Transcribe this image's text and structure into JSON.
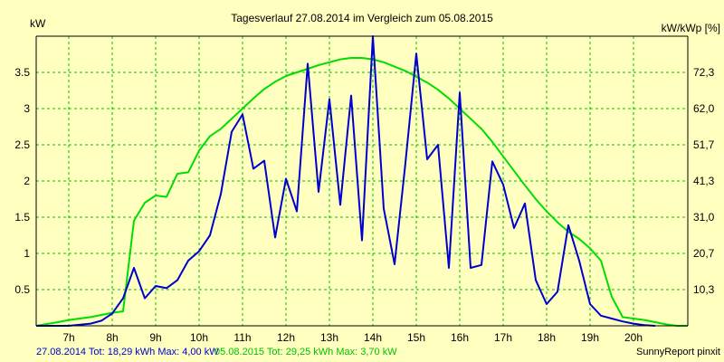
{
  "chart_data": {
    "type": "line",
    "title": "Tagesverlauf 27.08.2014 im Vergleich zum 05.08.2015",
    "ylabel_left": "kW",
    "ylabel_right": "kW/kWp [%]",
    "xlim": [
      6.25,
      21.25
    ],
    "ylim": [
      0,
      4.0
    ],
    "x_ticks": [
      7,
      8,
      9,
      10,
      11,
      12,
      13,
      14,
      15,
      16,
      17,
      18,
      19,
      20
    ],
    "x_tick_labels": [
      "7h",
      "8h",
      "9h",
      "10h",
      "11h",
      "12h",
      "13h",
      "14h",
      "15h",
      "16h",
      "17h",
      "18h",
      "19h",
      "20h"
    ],
    "y_ticks": [
      0.5,
      1,
      1.5,
      2,
      2.5,
      3,
      3.5
    ],
    "y_tick_labels": [
      "0.5",
      "1",
      "1.5",
      "2",
      "2.5",
      "3",
      "3.5"
    ],
    "y2_tick_labels": [
      "10,3",
      "20,7",
      "31,0",
      "41,3",
      "51,7",
      "62,0",
      "72,3"
    ],
    "grid": true,
    "colors": {
      "background": "#ffffc0",
      "grid": "#00c000",
      "series_2014": "#0000cc",
      "series_2015": "#00dd00",
      "axis": "#000000"
    },
    "series": [
      {
        "name": "27.08.2014",
        "color": "#0000cc",
        "x": [
          6.25,
          7.0,
          7.5,
          7.75,
          8.0,
          8.25,
          8.5,
          8.75,
          9.0,
          9.25,
          9.5,
          9.75,
          10.0,
          10.25,
          10.5,
          10.75,
          11.0,
          11.25,
          11.5,
          11.75,
          12.0,
          12.25,
          12.5,
          12.75,
          13.0,
          13.25,
          13.5,
          13.75,
          14.0,
          14.25,
          14.5,
          14.75,
          15.0,
          15.25,
          15.5,
          15.75,
          16.0,
          16.25,
          16.5,
          16.75,
          17.0,
          17.25,
          17.5,
          17.75,
          18.0,
          18.25,
          18.5,
          18.75,
          19.0,
          19.25,
          19.5,
          19.75,
          20.0,
          20.25,
          20.5
        ],
        "values": [
          0.0,
          0.0,
          0.03,
          0.07,
          0.17,
          0.38,
          0.8,
          0.38,
          0.55,
          0.52,
          0.63,
          0.9,
          1.03,
          1.25,
          1.82,
          2.68,
          2.92,
          2.17,
          2.28,
          1.22,
          2.03,
          1.58,
          3.62,
          1.85,
          3.13,
          1.67,
          3.18,
          1.18,
          4.0,
          1.62,
          0.85,
          2.25,
          3.76,
          2.3,
          2.5,
          0.8,
          3.22,
          0.8,
          0.84,
          2.27,
          1.95,
          1.35,
          1.69,
          0.63,
          0.3,
          0.47,
          1.39,
          0.9,
          0.3,
          0.14,
          0.1,
          0.06,
          0.03,
          0.01,
          0.0
        ]
      },
      {
        "name": "05.08.2015",
        "color": "#00dd00",
        "x": [
          6.25,
          6.75,
          7.0,
          7.5,
          8.0,
          8.25,
          8.5,
          8.75,
          9.0,
          9.25,
          9.5,
          9.75,
          10.0,
          10.25,
          10.5,
          10.75,
          11.0,
          11.25,
          11.5,
          11.75,
          12.0,
          12.25,
          12.5,
          12.75,
          13.0,
          13.25,
          13.5,
          13.75,
          14.0,
          14.25,
          14.5,
          14.75,
          15.0,
          15.25,
          15.5,
          15.75,
          16.0,
          16.25,
          16.5,
          16.75,
          17.0,
          17.25,
          17.5,
          17.75,
          18.0,
          18.25,
          18.5,
          18.75,
          19.0,
          19.25,
          19.5,
          19.75,
          20.0,
          20.25,
          20.5,
          20.75,
          21.0,
          21.25
        ],
        "values": [
          0.0,
          0.05,
          0.08,
          0.12,
          0.18,
          0.2,
          1.45,
          1.7,
          1.8,
          1.78,
          2.1,
          2.12,
          2.42,
          2.62,
          2.72,
          2.86,
          3.0,
          3.14,
          3.27,
          3.37,
          3.45,
          3.5,
          3.55,
          3.6,
          3.64,
          3.68,
          3.7,
          3.7,
          3.68,
          3.64,
          3.58,
          3.52,
          3.44,
          3.36,
          3.26,
          3.14,
          3.0,
          2.86,
          2.72,
          2.54,
          2.34,
          2.14,
          1.94,
          1.75,
          1.58,
          1.43,
          1.3,
          1.2,
          1.07,
          0.9,
          0.4,
          0.12,
          0.1,
          0.08,
          0.05,
          0.02,
          0.0,
          0.0
        ]
      }
    ]
  },
  "footer": {
    "series1": "27.08.2014 Tot: 18,29 kWh Max: 4,00 kW",
    "series2": "05.08.2015 Tot: 29,25 kWh Max: 3,70 kW",
    "credit": "SunnyReport pinxit"
  }
}
